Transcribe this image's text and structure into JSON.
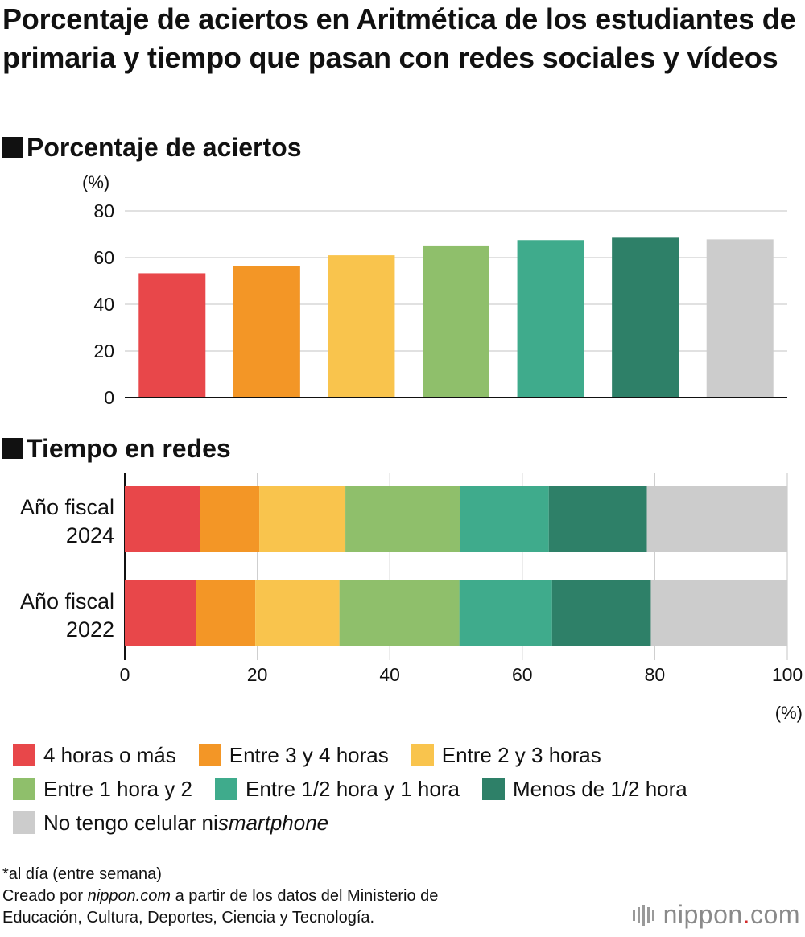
{
  "title": "Porcentaje de aciertos en Aritmética de los estudiantes de primaria y tiempo que pasan con redes sociales y vídeos",
  "section1_title": "Porcentaje de aciertos",
  "section2_title": "Tiempo en redes",
  "colors": [
    "#e8474a",
    "#f39626",
    "#f9c44d",
    "#8fbf6b",
    "#3fab8c",
    "#2e8068",
    "#cccccc"
  ],
  "legend": [
    {
      "name": "4 horas o más"
    },
    {
      "name": "Entre 3 y 4 horas"
    },
    {
      "name": "Entre 2 y 3 horas"
    },
    {
      "name": "Entre 1 hora y 2"
    },
    {
      "name": "Entre 1/2 hora y 1 hora"
    },
    {
      "name": "Menos de 1/2 hora"
    },
    {
      "name_prefix": "No tengo celular ni ",
      "name_italic": "smartphone"
    }
  ],
  "chart_data": [
    {
      "type": "bar",
      "categories": [
        "4 horas o más",
        "Entre 3 y 4 horas",
        "Entre 2 y 3 horas",
        "Entre 1 hora y 2",
        "Entre 1/2 hora y 1 hora",
        "Menos de 1/2 hora",
        "No tengo celular ni smartphone"
      ],
      "values": [
        53.3,
        56.5,
        61.0,
        65.2,
        67.5,
        68.5,
        67.8
      ],
      "unit_label": "(%)",
      "ylim": [
        0,
        80
      ],
      "yticks": [
        0,
        20,
        40,
        60,
        80
      ],
      "grid": true
    },
    {
      "type": "bar",
      "orientation": "horizontal",
      "stacked": true,
      "categories": [
        [
          "Año fiscal",
          "2024"
        ],
        [
          "Año fiscal",
          "2022"
        ]
      ],
      "series": [
        {
          "name": "4 horas o más",
          "values": [
            11.4,
            10.8
          ]
        },
        {
          "name": "Entre 3 y 4 horas",
          "values": [
            8.9,
            8.9
          ]
        },
        {
          "name": "Entre 2 y 3 horas",
          "values": [
            13.0,
            12.7
          ]
        },
        {
          "name": "Entre 1 hora y 2",
          "values": [
            17.3,
            18.1
          ]
        },
        {
          "name": "Entre 1/2 hora y 1 hora",
          "values": [
            13.4,
            14.0
          ]
        },
        {
          "name": "Menos de 1/2 hora",
          "values": [
            14.8,
            14.9
          ]
        },
        {
          "name": "No tengo celular ni smartphone",
          "values": [
            21.2,
            20.6
          ]
        }
      ],
      "xlim": [
        0,
        100
      ],
      "xticks": [
        0,
        20,
        40,
        60,
        80,
        100
      ],
      "unit_label": "(%)",
      "grid": true
    }
  ],
  "notes": {
    "note1": "*al día (entre semana)",
    "credit_prefix": "Creado por ",
    "credit_italic": "nippon.com",
    "credit_suffix": " a partir de los datos del Ministerio de",
    "credit_line2": "Educación, Cultura, Deportes, Ciencia y Tecnología."
  },
  "logo": {
    "main": "nippon",
    "dot": ".",
    "suffix": "com"
  }
}
